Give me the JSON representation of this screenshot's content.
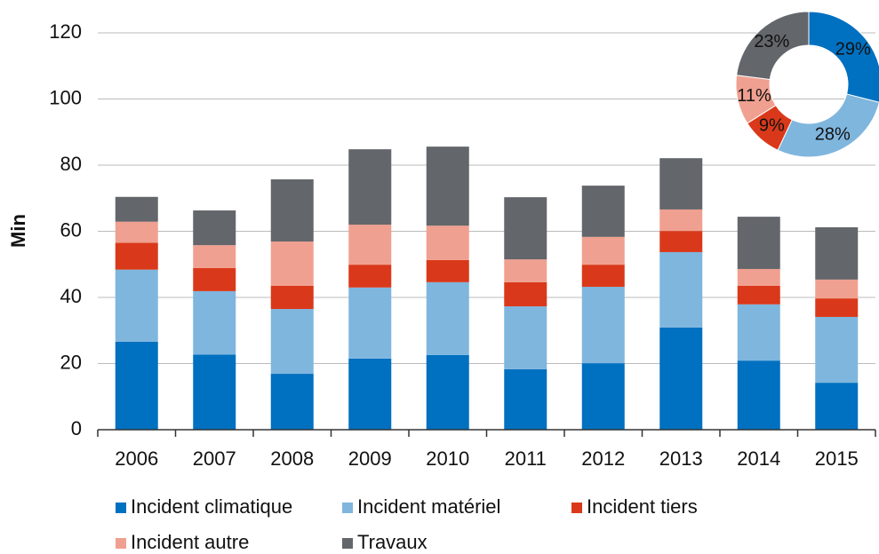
{
  "chart_data": [
    {
      "type": "bar",
      "stacked": true,
      "ylabel": "Min",
      "categories": [
        "2006",
        "2007",
        "2008",
        "2009",
        "2010",
        "2011",
        "2012",
        "2013",
        "2014",
        "2015"
      ],
      "series": [
        {
          "name": "Incident climatique",
          "color": "#0070c0",
          "values": [
            26.6,
            22.7,
            16.9,
            21.5,
            22.6,
            18.3,
            20.1,
            30.9,
            20.9,
            14.2
          ]
        },
        {
          "name": "Incident matériel",
          "color": "#7fb6de",
          "values": [
            21.8,
            19.2,
            19.6,
            21.5,
            22.0,
            19.0,
            23.1,
            22.8,
            17.0,
            19.9
          ]
        },
        {
          "name": "Incident tiers",
          "color": "#d9391a",
          "values": [
            8.1,
            7.0,
            7.0,
            6.9,
            6.7,
            7.3,
            6.7,
            6.4,
            5.6,
            5.6
          ]
        },
        {
          "name": "Incident autre",
          "color": "#f0a090",
          "values": [
            6.4,
            6.9,
            13.4,
            12.1,
            10.4,
            6.9,
            8.4,
            6.5,
            5.1,
            5.7
          ]
        },
        {
          "name": "Travaux",
          "color": "#63666a",
          "values": [
            7.5,
            10.5,
            18.8,
            22.8,
            23.9,
            18.8,
            15.5,
            15.5,
            15.8,
            15.8
          ]
        }
      ],
      "ylim": [
        0,
        120
      ],
      "yticks": [
        0,
        20,
        40,
        60,
        80,
        100,
        120
      ],
      "grid": true
    },
    {
      "type": "pie",
      "donut": true,
      "values": [
        29,
        28,
        9,
        11,
        23
      ],
      "value_labels": [
        "29%",
        "28%",
        "9%",
        "11%",
        "23%"
      ],
      "colors": [
        "#0070c0",
        "#7fb6de",
        "#d9391a",
        "#f0a090",
        "#63666a"
      ]
    }
  ]
}
